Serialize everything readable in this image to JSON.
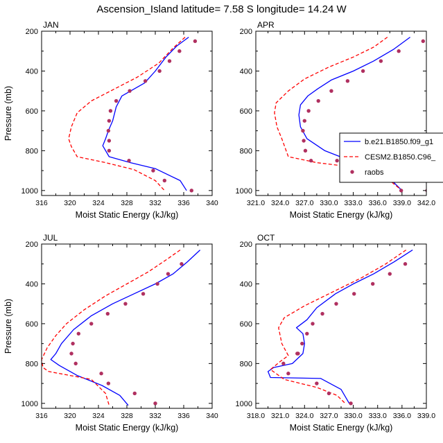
{
  "figure": {
    "title": "Ascension_Island  latitude= 7.58 S longitude= 14.24 W"
  },
  "legend": {
    "entries": [
      {
        "label": "b.e21.B1850.f09_g1",
        "style": "line",
        "color": "#0000ff"
      },
      {
        "label": "CESM2.B1850.C96_",
        "style": "dash",
        "color": "#ff0000"
      },
      {
        "label": "raobs",
        "style": "marker",
        "color": "#b03060"
      }
    ]
  },
  "chart_data": [
    {
      "type": "line",
      "title": "JAN",
      "xlabel": "Moist Static Energy (kJ/kg)",
      "ylabel": "Pressure (mb)",
      "xlim": [
        316,
        340
      ],
      "ylim": [
        1025,
        200
      ],
      "xticks": [
        316,
        320,
        324,
        328,
        332,
        336,
        340
      ],
      "xtick_labels": [
        "316",
        "320",
        "324",
        "328",
        "332",
        "336",
        "340"
      ],
      "yticks": [
        200,
        400,
        600,
        800,
        1000
      ],
      "ytick_labels": [
        "200",
        "400",
        "600",
        "800",
        "1000"
      ],
      "series": [
        {
          "name": "b.e21.B1850.f09_g1",
          "style": "solid",
          "color": "#0000ff",
          "x": [
            336.7,
            335.0,
            333.5,
            332.0,
            330.5,
            327.3,
            326.5,
            326.0,
            325.4,
            325.0,
            324.6,
            325.5,
            328.5,
            332.0,
            335.5,
            336.4
          ],
          "y": [
            230,
            275,
            330,
            400,
            460,
            525,
            580,
            650,
            700,
            740,
            775,
            830,
            860,
            890,
            950,
            1000
          ]
        },
        {
          "name": "CESM2.B1850.C96_",
          "style": "dash",
          "color": "#ff0000",
          "x": [
            336.2,
            334.5,
            332.5,
            329.5,
            326.0,
            323.0,
            321.0,
            320.2,
            319.8,
            320.2,
            321.0,
            325.0,
            329.0,
            332.0,
            333.3
          ],
          "y": [
            230,
            285,
            360,
            430,
            495,
            550,
            610,
            680,
            740,
            780,
            830,
            860,
            895,
            950,
            1000
          ]
        },
        {
          "name": "raobs",
          "style": "marker",
          "color": "#b03060",
          "x": [
            337.6,
            335.4,
            334.0,
            332.6,
            330.6,
            328.4,
            326.5,
            325.7,
            325.5,
            325.4,
            325.5,
            325.5,
            328.3,
            331.7,
            333.3,
            337.1
          ],
          "y": [
            250,
            300,
            350,
            400,
            450,
            500,
            550,
            600,
            650,
            700,
            750,
            800,
            850,
            900,
            950,
            1000
          ]
        }
      ]
    },
    {
      "type": "line",
      "title": "APR",
      "xlabel": "Moist Static Energy (kJ/kg)",
      "ylabel": "Pressure (mb)",
      "xlim": [
        321,
        342
      ],
      "ylim": [
        1025,
        200
      ],
      "xticks": [
        321,
        324,
        327,
        330,
        333,
        336,
        339,
        342
      ],
      "xtick_labels": [
        "321.0",
        "324.0",
        "327.0",
        "330.0",
        "333.0",
        "336.0",
        "339.0",
        "342.0"
      ],
      "yticks": [
        200,
        400,
        600,
        800,
        1000
      ],
      "ytick_labels": [
        "200",
        "400",
        "600",
        "800",
        "1000"
      ],
      "series": [
        {
          "name": "b.e21.B1850.f09_g1",
          "style": "solid",
          "color": "#0000ff",
          "x": [
            340.0,
            338.0,
            335.5,
            333.0,
            330.3,
            328.6,
            327.4,
            326.5,
            326.3,
            326.5,
            327.3,
            329.5,
            332.0,
            335.0,
            337.5,
            339.0
          ],
          "y": [
            230,
            290,
            350,
            400,
            445,
            490,
            525,
            570,
            620,
            680,
            740,
            800,
            840,
            880,
            940,
            1000
          ]
        },
        {
          "name": "CESM2.B1850.C96_",
          "style": "dash",
          "color": "#ff0000",
          "x": [
            337.2,
            335.5,
            333.0,
            330.0,
            327.0,
            325.0,
            323.5,
            323.3,
            323.6,
            324.2,
            325.0,
            328.5,
            332.5,
            335.5,
            337.5,
            339.0
          ],
          "y": [
            230,
            280,
            330,
            380,
            440,
            500,
            560,
            610,
            680,
            740,
            830,
            860,
            880,
            920,
            950,
            1000
          ]
        },
        {
          "name": "raobs",
          "style": "marker",
          "color": "#b03060",
          "x": [
            341.6,
            338.6,
            336.4,
            334.2,
            332.3,
            330.3,
            328.7,
            327.5,
            327.0,
            326.8,
            326.9,
            327.1,
            327.8,
            331.0,
            334.7,
            338.9,
            342.1
          ],
          "y": [
            250,
            300,
            350,
            400,
            450,
            500,
            550,
            600,
            650,
            700,
            750,
            800,
            850,
            850,
            900,
            1000,
            1000
          ]
        }
      ]
    },
    {
      "type": "line",
      "title": "JUL",
      "xlabel": "Moist Static Energy (kJ/kg)",
      "ylabel": "Pressure (mb)",
      "xlim": [
        316,
        340
      ],
      "ylim": [
        1025,
        200
      ],
      "xticks": [
        316,
        320,
        324,
        328,
        332,
        336,
        340
      ],
      "xtick_labels": [
        "316",
        "320",
        "324",
        "328",
        "332",
        "336",
        "340"
      ],
      "yticks": [
        200,
        400,
        600,
        800,
        1000
      ],
      "ytick_labels": [
        "200",
        "400",
        "600",
        "800",
        "1000"
      ],
      "series": [
        {
          "name": "b.e21.B1850.f09_g1",
          "style": "solid",
          "color": "#0000ff",
          "x": [
            338.3,
            336.5,
            334.5,
            332.0,
            329.0,
            326.0,
            323.0,
            320.5,
            318.8,
            318.0,
            317.3,
            318.5,
            321.0,
            324.5,
            327.0,
            328.2
          ],
          "y": [
            230,
            290,
            350,
            400,
            450,
            500,
            560,
            630,
            700,
            750,
            780,
            810,
            860,
            910,
            960,
            1010
          ]
        },
        {
          "name": "CESM2.B1850.C96_",
          "style": "dash",
          "color": "#ff0000",
          "x": [
            335.5,
            333.5,
            331.0,
            328.0,
            325.0,
            322.0,
            319.5,
            318.0,
            316.8,
            316.0,
            316.2,
            317.0,
            320.0,
            323.0,
            325.0,
            325.5
          ],
          "y": [
            230,
            280,
            340,
            400,
            460,
            530,
            600,
            660,
            720,
            780,
            820,
            840,
            860,
            880,
            950,
            1010
          ]
        },
        {
          "name": "raobs",
          "style": "marker",
          "color": "#b03060",
          "x": [
            335.7,
            333.8,
            332.3,
            330.3,
            327.8,
            325.3,
            323.0,
            321.2,
            320.4,
            320.2,
            320.8,
            324.4,
            325.4,
            329.1,
            332.0
          ],
          "y": [
            300,
            350,
            400,
            450,
            500,
            550,
            600,
            650,
            700,
            750,
            800,
            850,
            900,
            950,
            1000
          ]
        }
      ]
    },
    {
      "type": "line",
      "title": "OCT",
      "xlabel": "Moist Static Energy (kJ/kg)",
      "ylabel": "Pressure (mb)",
      "xlim": [
        318,
        339
      ],
      "ylim": [
        1025,
        200
      ],
      "xticks": [
        318,
        321,
        324,
        327,
        330,
        333,
        336,
        339
      ],
      "xtick_labels": [
        "318.0",
        "321.0",
        "324.0",
        "327.0",
        "330.0",
        "333.0",
        "336.0",
        "339.0"
      ],
      "yticks": [
        200,
        400,
        600,
        800,
        1000
      ],
      "ytick_labels": [
        "200",
        "400",
        "600",
        "800",
        "1000"
      ],
      "series": [
        {
          "name": "b.e21.B1850.f09_g1",
          "style": "solid",
          "color": "#0000ff",
          "x": [
            337.3,
            335.0,
            332.5,
            330.0,
            327.8,
            325.5,
            324.3,
            323.0,
            323.8,
            324.0,
            323.8,
            322.5,
            320.2,
            319.5,
            319.8,
            326.0,
            328.5,
            329.5
          ],
          "y": [
            230,
            290,
            350,
            400,
            450,
            520,
            580,
            620,
            650,
            700,
            750,
            800,
            820,
            840,
            870,
            875,
            930,
            1000
          ]
        },
        {
          "name": "CESM2.B1850.C96_",
          "style": "dash",
          "color": "#ff0000",
          "x": [
            336.5,
            334.0,
            331.0,
            327.5,
            324.0,
            321.5,
            320.8,
            321.2,
            322.0,
            321.0,
            319.8,
            321.5,
            325.5,
            328.0,
            329.0
          ],
          "y": [
            230,
            300,
            370,
            440,
            510,
            570,
            620,
            700,
            760,
            790,
            830,
            880,
            920,
            960,
            1000
          ]
        },
        {
          "name": "raobs",
          "style": "marker",
          "color": "#b03060",
          "x": [
            336.4,
            334.5,
            332.4,
            330.1,
            327.9,
            326.2,
            325.0,
            324.3,
            323.7,
            323.2,
            323.1,
            321.4,
            322.0,
            325.5,
            327.0,
            329.7
          ],
          "y": [
            300,
            350,
            400,
            450,
            500,
            550,
            600,
            650,
            700,
            750,
            750,
            800,
            850,
            900,
            950,
            1000
          ]
        }
      ]
    }
  ]
}
